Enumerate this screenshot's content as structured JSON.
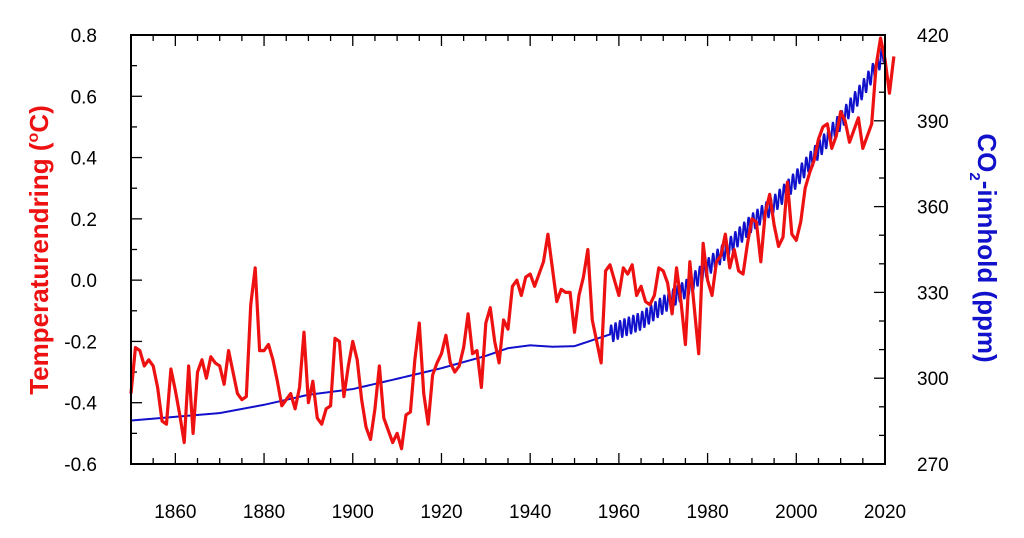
{
  "chart_data": {
    "type": "line",
    "xlim": [
      1850,
      2020
    ],
    "x_ticks": [
      "1860",
      "1880",
      "1900",
      "1920",
      "1940",
      "1960",
      "1980",
      "2000",
      "2020"
    ],
    "y_left": {
      "label": "Temperaturendring (°C)",
      "label_main": "Temperaturendring (",
      "label_unit": "C)",
      "label_degree": "o",
      "color": "#ee1111",
      "lim": [
        -0.6,
        0.8
      ],
      "ticks": [
        "-0.6",
        "-0.4",
        "-0.2",
        "0.0",
        "0.2",
        "0.4",
        "0.6",
        "0.8"
      ]
    },
    "y_right": {
      "label": "CO2-innhold (ppm)",
      "label_main": "CO",
      "label_sub": "2",
      "label_rest": "-innhold (ppm)",
      "color": "#1111cc",
      "lim": [
        270,
        420
      ],
      "ticks": [
        "270",
        "300",
        "330",
        "360",
        "390",
        "420"
      ]
    },
    "series": [
      {
        "axis": "left",
        "color": "#ee1111",
        "x_start": 1850,
        "x_step": 1,
        "values": [
          -0.37,
          -0.22,
          -0.23,
          -0.28,
          -0.26,
          -0.28,
          -0.35,
          -0.46,
          -0.47,
          -0.29,
          -0.36,
          -0.44,
          -0.53,
          -0.28,
          -0.5,
          -0.3,
          -0.26,
          -0.32,
          -0.25,
          -0.27,
          -0.28,
          -0.34,
          -0.23,
          -0.3,
          -0.37,
          -0.39,
          -0.38,
          -0.08,
          0.04,
          -0.23,
          -0.23,
          -0.21,
          -0.26,
          -0.33,
          -0.41,
          -0.39,
          -0.37,
          -0.42,
          -0.35,
          -0.17,
          -0.4,
          -0.33,
          -0.45,
          -0.47,
          -0.42,
          -0.41,
          -0.19,
          -0.2,
          -0.38,
          -0.28,
          -0.2,
          -0.26,
          -0.39,
          -0.48,
          -0.52,
          -0.42,
          -0.28,
          -0.45,
          -0.49,
          -0.53,
          -0.5,
          -0.55,
          -0.44,
          -0.43,
          -0.26,
          -0.14,
          -0.37,
          -0.47,
          -0.31,
          -0.27,
          -0.24,
          -0.18,
          -0.27,
          -0.3,
          -0.28,
          -0.22,
          -0.11,
          -0.24,
          -0.23,
          -0.35,
          -0.14,
          -0.09,
          -0.2,
          -0.27,
          -0.13,
          -0.16,
          -0.02,
          0.0,
          -0.05,
          0.01,
          0.02,
          -0.02,
          0.02,
          0.06,
          0.15,
          0.04,
          -0.07,
          -0.03,
          -0.04,
          -0.04,
          -0.17,
          -0.05,
          0.01,
          0.1,
          -0.13,
          -0.2,
          -0.27,
          0.03,
          0.05,
          0.0,
          -0.05,
          0.04,
          0.02,
          0.05,
          -0.05,
          -0.02,
          -0.07,
          -0.08,
          -0.05,
          0.04,
          0.03,
          -0.01,
          -0.11,
          0.04,
          -0.07,
          -0.21,
          0.06,
          -0.09,
          -0.24,
          0.12,
          0.0,
          -0.05,
          0.06,
          0.08,
          0.15,
          0.04,
          0.1,
          0.03,
          0.02,
          0.12,
          0.2,
          0.19,
          0.06,
          0.22,
          0.28,
          0.18,
          0.11,
          0.14,
          0.32,
          0.15,
          0.13,
          0.19,
          0.3,
          0.35,
          0.39,
          0.46,
          0.5,
          0.51,
          0.43,
          0.47,
          0.55,
          0.52,
          0.45,
          0.49,
          0.53,
          0.43,
          0.47,
          0.51,
          0.7,
          0.79,
          0.72,
          0.61,
          0.73
        ]
      },
      {
        "axis": "right",
        "color": "#1111cc",
        "points": [
          [
            1850,
            285.2
          ],
          [
            1860,
            286.5
          ],
          [
            1870,
            287.8
          ],
          [
            1880,
            290.7
          ],
          [
            1890,
            294.2
          ],
          [
            1900,
            296.2
          ],
          [
            1910,
            299.8
          ],
          [
            1920,
            303.5
          ],
          [
            1930,
            307.8
          ],
          [
            1935,
            310.5
          ],
          [
            1940,
            311.5
          ],
          [
            1945,
            311.0
          ],
          [
            1950,
            311.2
          ],
          [
            1955,
            313.8
          ],
          [
            1958,
            315.3
          ],
          [
            1960,
            316.9
          ],
          [
            1965,
            320.0
          ],
          [
            1970,
            325.7
          ],
          [
            1975,
            331.1
          ],
          [
            1980,
            338.7
          ],
          [
            1985,
            346.1
          ],
          [
            1990,
            354.4
          ],
          [
            1995,
            360.8
          ],
          [
            2000,
            369.6
          ],
          [
            2005,
            379.8
          ],
          [
            2010,
            389.9
          ],
          [
            2015,
            401.0
          ],
          [
            2020,
            414.2
          ]
        ],
        "seasonal_from": 1958,
        "seasonal_amplitude": 3.2
      }
    ]
  }
}
